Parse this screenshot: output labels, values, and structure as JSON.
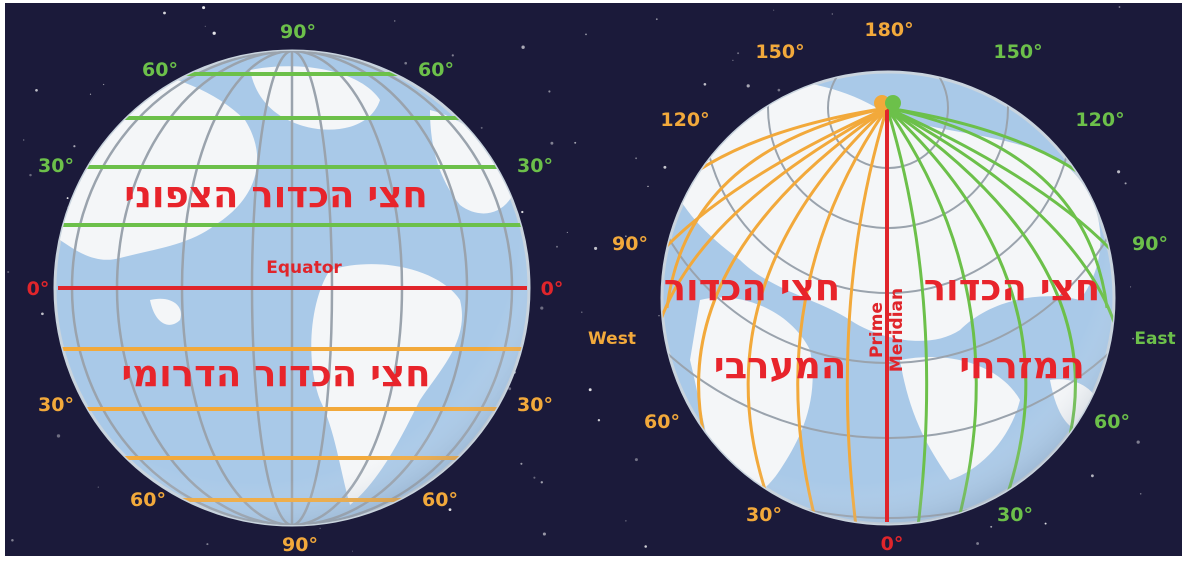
{
  "colors": {
    "north": "#6cc04a",
    "south": "#f2a93b",
    "red": "#e0252b",
    "space": "#1b1a3a",
    "ocean": "#a9c9e8",
    "land": "#f4f6f8",
    "grid": "#9aa3ad"
  },
  "left_globe": {
    "top_label": "90°",
    "bottom_label": "90°",
    "north_labels": {
      "l60": "60°",
      "r60": "60°",
      "l30": "30°",
      "r30": "30°"
    },
    "south_labels": {
      "l30": "30°",
      "r30": "30°",
      "l60": "60°",
      "r60": "60°"
    },
    "equator_left": "0°",
    "equator_right": "0°",
    "equator_name": "Equator",
    "north_text": "חצי הכדור הצפוני",
    "south_text": "חצי הכדור הדרומי"
  },
  "right_globe": {
    "top_label": "180°",
    "bottom_label": "0°",
    "west_labels": {
      "l150": "150°",
      "l120": "120°",
      "l90": "90°",
      "l60": "60°",
      "l30": "30°"
    },
    "east_labels": {
      "r150": "150°",
      "r120": "120°",
      "r90": "90°",
      "r60": "60°",
      "r30": "30°"
    },
    "west": "West",
    "east": "East",
    "prime": "Prime",
    "meridian": "Meridian",
    "west_text_1": "חצי הכדור",
    "west_text_2": "המערבי",
    "east_text_1": "חצי הכדור",
    "east_text_2": "המזרחי"
  }
}
